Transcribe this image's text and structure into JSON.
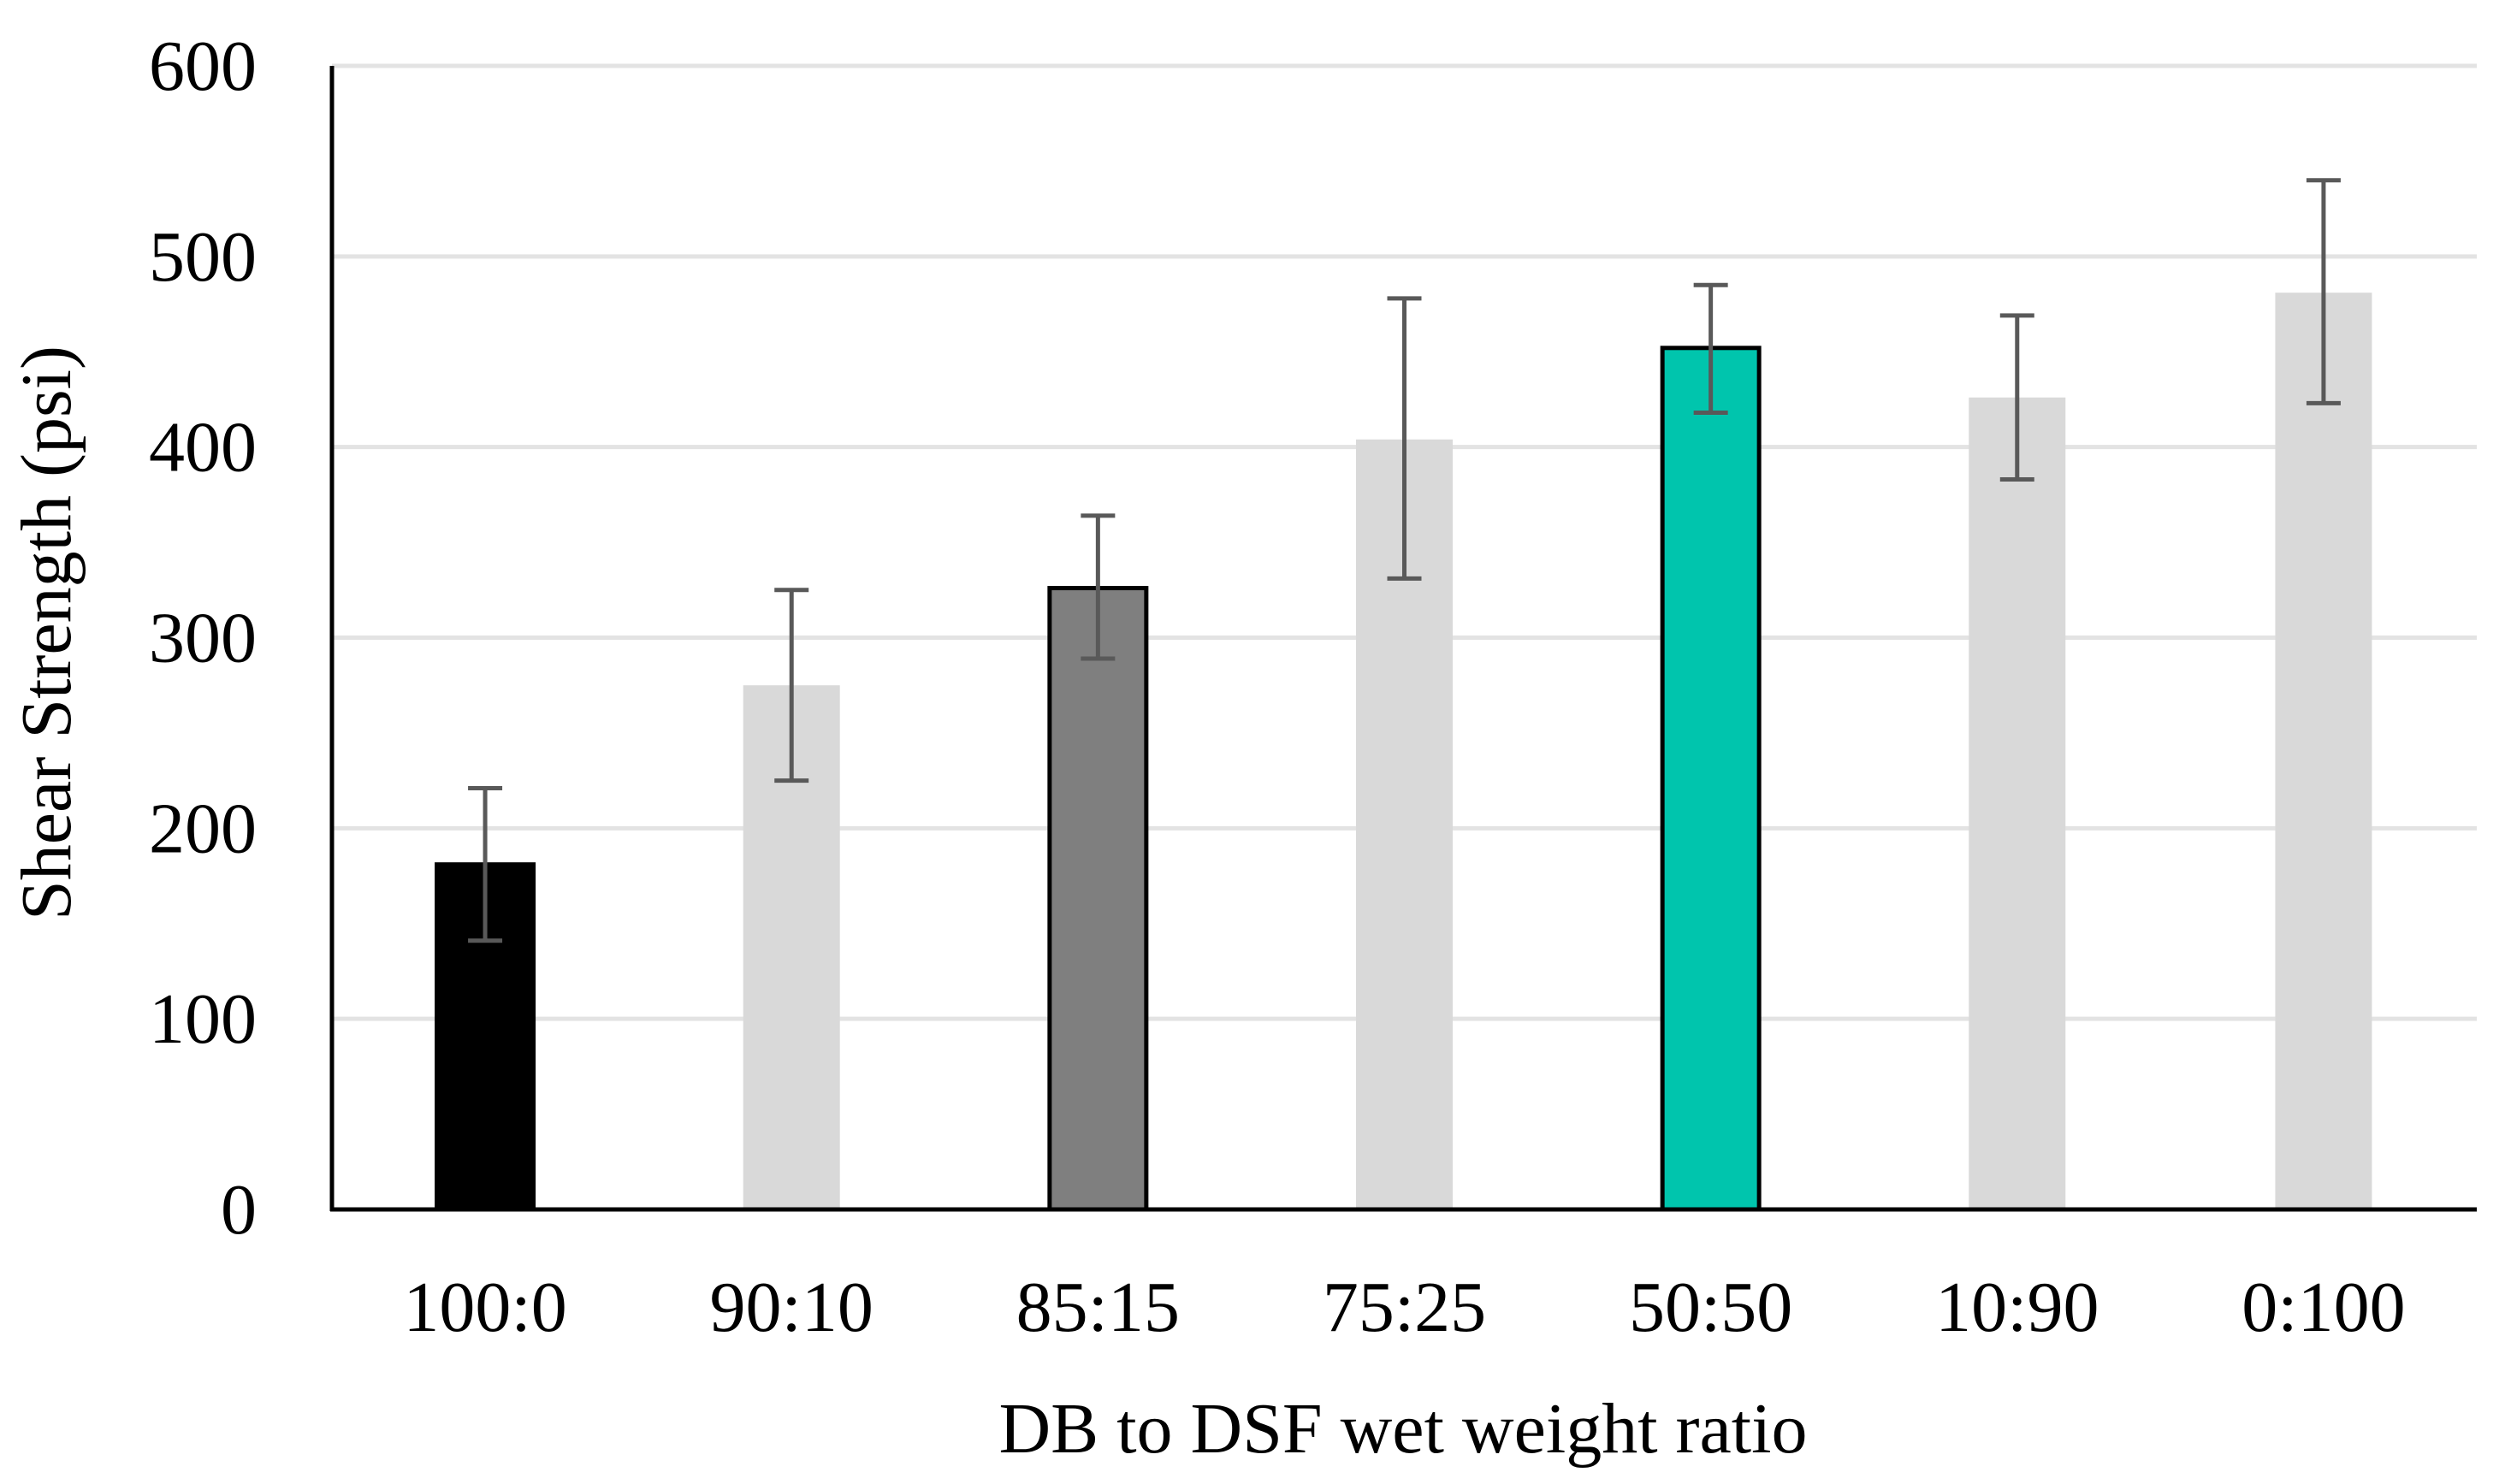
{
  "chart_data": {
    "type": "bar",
    "title": "",
    "xlabel": "DB to DSF wet weight ratio",
    "ylabel": "Shear Strength (psi)",
    "ylim": [
      0,
      600
    ],
    "yticks": [
      0,
      100,
      200,
      300,
      400,
      500,
      600
    ],
    "grid": true,
    "legend": "none",
    "categories": [
      "100:0",
      "90:10",
      "85:15",
      "75:25",
      "50:50",
      "10:90",
      "0:100"
    ],
    "values": [
      181,
      275,
      326,
      404,
      452,
      426,
      481
    ],
    "error_low": [
      141,
      225,
      289,
      331,
      418,
      383,
      423
    ],
    "error_high": [
      221,
      325,
      364,
      478,
      485,
      469,
      540
    ],
    "colors": [
      "#000000",
      "#d9d9d9",
      "#7f7f7f",
      "#d9d9d9",
      "#00c5ad",
      "#d9d9d9",
      "#d9d9d9"
    ],
    "outlined": [
      true,
      false,
      true,
      false,
      true,
      false,
      false
    ],
    "gridline_color": "#e3e3e3",
    "axis_color": "#000000",
    "errorbar_color": "#595959"
  }
}
